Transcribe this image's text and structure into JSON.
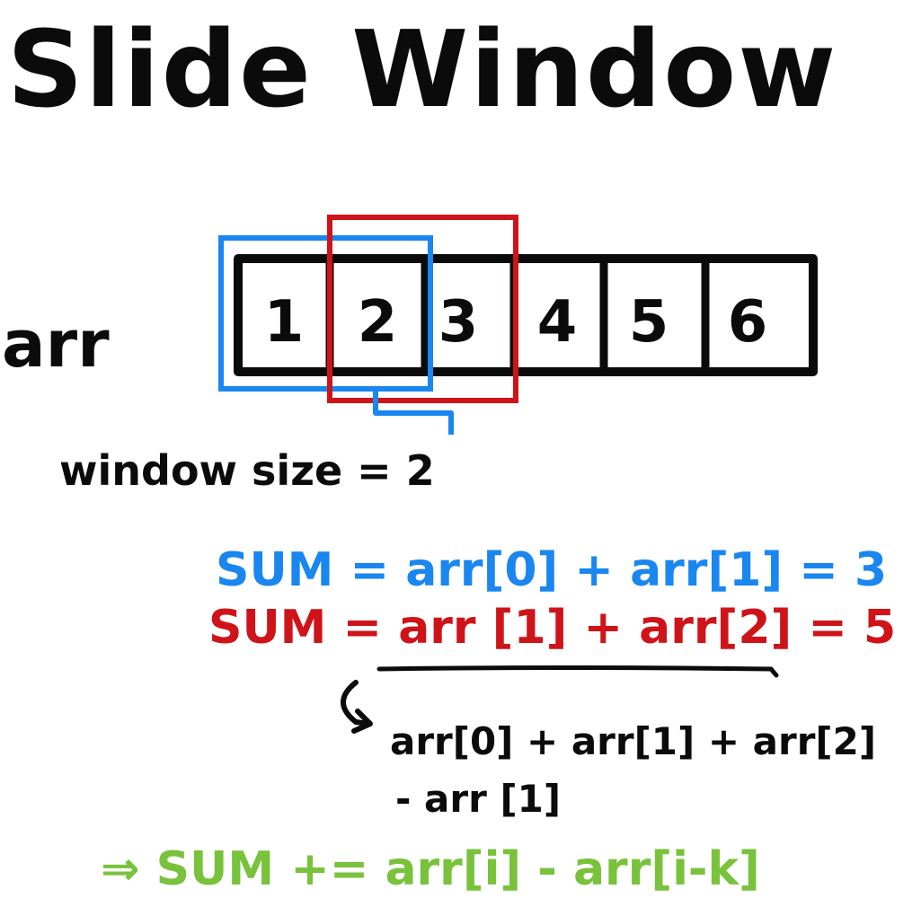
{
  "title": "Slide Window",
  "array": {
    "label": "arr",
    "cells": [
      "1",
      "2",
      "3",
      "4",
      "5",
      "6"
    ]
  },
  "window_size_text": "window size = 2",
  "equations": {
    "blue": "SUM = arr[0] + arr[1]  = 3",
    "red": "SUM = arr [1] + arr[2]  = 5",
    "expansion_line1": "arr[0] + arr[1] + arr[2]",
    "expansion_line2": "- arr [1]",
    "result": "⇒ SUM += arr[i] - arr[i-k]"
  },
  "colors": {
    "ink": "#0b0b0b",
    "blue": "#1a86f0",
    "red": "#cf1419",
    "green": "#79c23c"
  },
  "icons": {
    "curved_arrow": "curved-arrow-icon",
    "implies_arrow": "double-arrow-icon"
  }
}
